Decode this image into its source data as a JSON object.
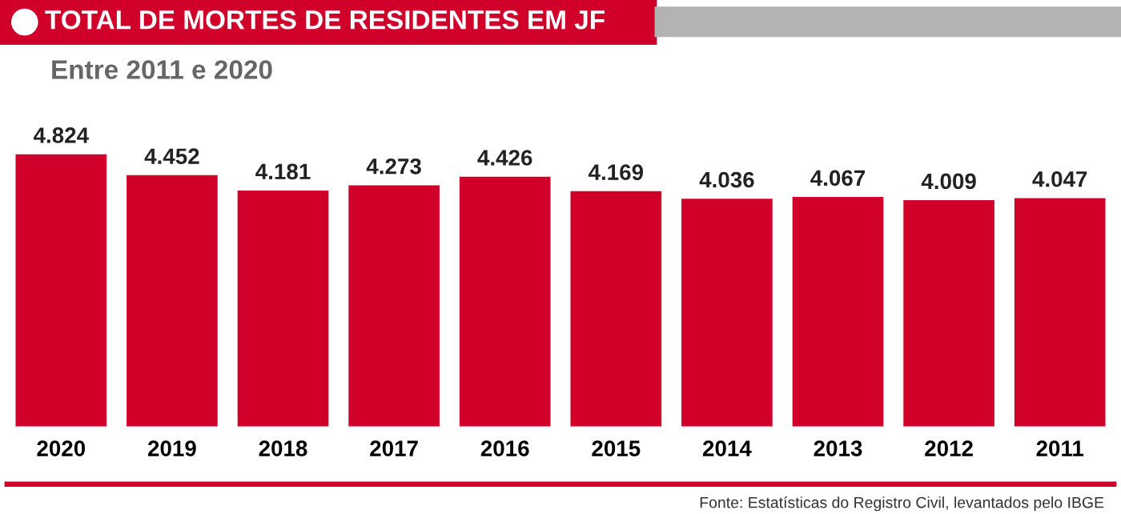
{
  "chart_data": {
    "type": "bar",
    "title": "TOTAL DE MORTES DE RESIDENTES EM JF",
    "subtitle": "Entre 2011 e 2020",
    "categories": [
      "2020",
      "2019",
      "2018",
      "2017",
      "2016",
      "2015",
      "2014",
      "2013",
      "2012",
      "2011"
    ],
    "values": [
      4824,
      4452,
      4181,
      4273,
      4426,
      4169,
      4036,
      4067,
      4009,
      4047
    ],
    "value_labels": [
      "4.824",
      "4.452",
      "4.181",
      "4.273",
      "4.426",
      "4.169",
      "4.036",
      "4.067",
      "4.009",
      "4.047"
    ],
    "color": "#d0002a",
    "annotations": [
      "Fonte: Estatísticas do Registro Civil, levantados pelo IBGE"
    ]
  }
}
